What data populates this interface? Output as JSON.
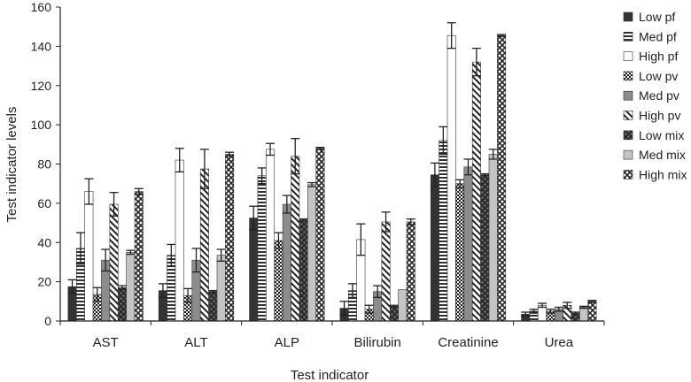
{
  "chart_data": {
    "type": "bar",
    "title": "",
    "xlabel": "Test indicator",
    "ylabel": "Test indicator levels",
    "ylim": [
      0,
      160
    ],
    "yticks": [
      0,
      20,
      40,
      60,
      80,
      100,
      120,
      140,
      160
    ],
    "grid": false,
    "legend_position": "right",
    "categories": [
      "AST",
      "ALT",
      "ALP",
      "Bilirubin",
      "Creatinine",
      "Urea"
    ],
    "series": [
      {
        "name": "Low pf",
        "pattern": "solid-dark",
        "values": [
          17.5,
          15.5,
          52.5,
          6.5,
          74.5,
          3.5
        ],
        "errors": [
          3.5,
          3.5,
          6,
          3.5,
          6,
          1
        ]
      },
      {
        "name": "Med pf",
        "pattern": "hlines",
        "values": [
          37,
          33.5,
          74,
          15.5,
          92,
          5
        ],
        "errors": [
          8,
          5.5,
          4,
          3.5,
          7,
          1
        ]
      },
      {
        "name": "High pf",
        "pattern": "white",
        "values": [
          66,
          82,
          87.5,
          41.5,
          145.5,
          8
        ],
        "errors": [
          6.5,
          6,
          3,
          8,
          6.5,
          1
        ]
      },
      {
        "name": "Low pv",
        "pattern": "dots",
        "values": [
          13.5,
          13,
          41,
          6,
          70,
          5
        ],
        "errors": [
          3.5,
          3.5,
          4,
          2,
          2,
          1
        ]
      },
      {
        "name": "Med pv",
        "pattern": "solid-grey",
        "values": [
          31,
          31,
          59.5,
          15,
          78.5,
          6
        ],
        "errors": [
          5.5,
          6,
          4.5,
          3,
          4,
          1
        ]
      },
      {
        "name": "High pv",
        "pattern": "diagonal",
        "values": [
          59.5,
          77.5,
          84,
          50.5,
          132,
          8
        ],
        "errors": [
          6,
          10,
          9,
          5,
          7,
          1.5
        ]
      },
      {
        "name": "Low mix",
        "pattern": "checker",
        "values": [
          17,
          15,
          51.5,
          7.5,
          74.5,
          4
        ],
        "errors": [
          1,
          0.5,
          0.5,
          0.5,
          0.5,
          0.5
        ]
      },
      {
        "name": "Med mix",
        "pattern": "solid-light",
        "values": [
          35,
          33.5,
          69.5,
          16,
          85,
          7
        ],
        "errors": [
          1,
          3,
          1,
          0,
          2.5,
          0.5
        ]
      },
      {
        "name": "High mix",
        "pattern": "crosshatch",
        "values": [
          66,
          85,
          88,
          50.5,
          145.5,
          10
        ],
        "errors": [
          1.5,
          1,
          0.5,
          1.5,
          0.5,
          0.5
        ]
      }
    ]
  }
}
